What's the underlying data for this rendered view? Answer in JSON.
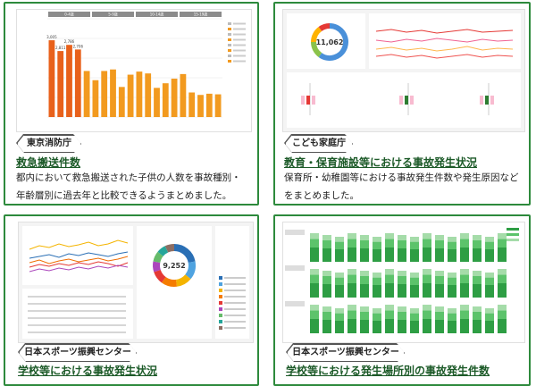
{
  "cards": [
    {
      "org": "東京消防庁",
      "title": "救急搬送件数",
      "description": "都内において救急搬送された子供の人数を事故種別・年齢層別に過去年と比較できるようまとめました。",
      "thumb": {
        "panel_headers": [
          "0-4歳",
          "5-9歳",
          "10-14歳",
          "15-19歳"
        ],
        "bar_values": [
          2500,
          2150,
          2350,
          2200,
          1500,
          1200,
          1500,
          1550,
          980,
          1380,
          1480,
          1420,
          950,
          1100,
          1250,
          1400,
          800,
          720,
          760,
          740
        ],
        "highlighted_values": [
          "3,005",
          "2,811",
          "2,786",
          "2,706"
        ],
        "bar_color": "#f29a1f",
        "accent_color": "#e8611b"
      }
    },
    {
      "org": "こども家庭庁",
      "title": "教育・保育施設等における事故発生状況",
      "description": "保育所・幼稚園等における事故発生件数や発生原因などをまとめました。",
      "thumb": {
        "donut_total": "11,062",
        "donut_colors": [
          "#4a90d9",
          "#8bc34a",
          "#ffb300",
          "#e53935"
        ],
        "line_colors": [
          "#e53935",
          "#f06292",
          "#ffb74d",
          "#ef5350"
        ]
      }
    },
    {
      "org": "日本スポーツ振興センター",
      "title": "学校等における事故発生状況",
      "description": "",
      "thumb": {
        "donut_total": "9,252",
        "donut_colors": [
          "#2a6fb5",
          "#4fa3e0",
          "#f4b400",
          "#f57c00",
          "#e53935",
          "#ab47bc",
          "#66bb6a",
          "#26a69a",
          "#8d6e63"
        ],
        "line_colors": [
          "#f4b400",
          "#2a6fb5",
          "#e53935",
          "#ab47bc",
          "#ef6c00"
        ]
      }
    },
    {
      "org": "日本スポーツ振興センター",
      "title": "学校等における発生場所別の事故発生件数",
      "description": "",
      "thumb": {
        "bar_colors": [
          "#2e9e44",
          "#5cc36b",
          "#a5dca9"
        ]
      }
    }
  ]
}
